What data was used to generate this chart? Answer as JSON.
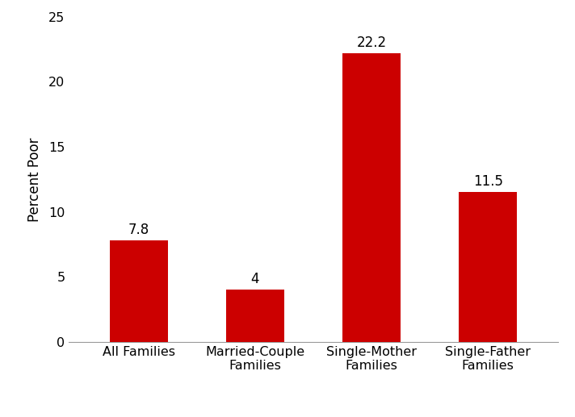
{
  "categories": [
    "All Families",
    "Married-Couple\nFamilies",
    "Single-Mother\nFamilies",
    "Single-Father\nFamilies"
  ],
  "values": [
    7.8,
    4,
    22.2,
    11.5
  ],
  "bar_color": "#cc0000",
  "ylabel": "Percent Poor",
  "ylim": [
    0,
    25
  ],
  "yticks": [
    0,
    5,
    10,
    15,
    20,
    25
  ],
  "value_labels": [
    "7.8",
    "4",
    "22.2",
    "11.5"
  ],
  "background_color": "#ffffff",
  "bar_width": 0.5,
  "label_fontsize": 12,
  "tick_fontsize": 11.5,
  "ylabel_fontsize": 12
}
